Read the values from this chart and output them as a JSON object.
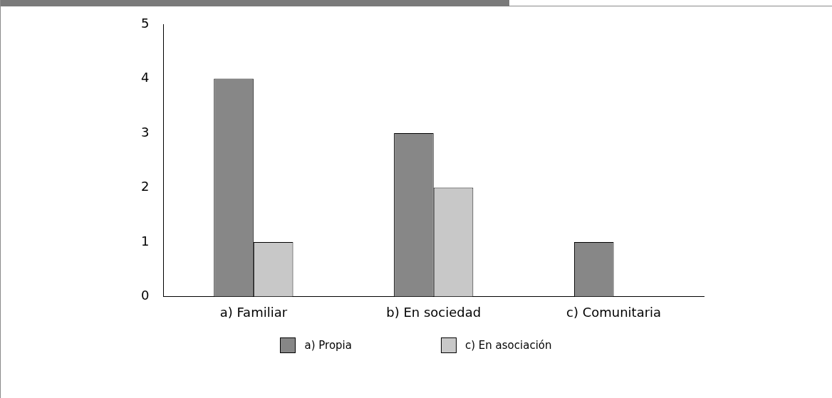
{
  "chart_data": {
    "type": "bar",
    "categories": [
      "a) Familiar",
      "b) En sociedad",
      "c) Comunitaria"
    ],
    "series": [
      {
        "name": "a) Propia",
        "color": "#878787",
        "values": [
          4,
          3,
          1
        ]
      },
      {
        "name": "c) En asociación",
        "color": "#c8c8c8",
        "values": [
          1,
          2,
          0
        ]
      }
    ],
    "ylim": [
      0,
      5
    ],
    "yticks": [
      0,
      1,
      2,
      3,
      4,
      5
    ],
    "grid": false,
    "legend": "bottom"
  }
}
